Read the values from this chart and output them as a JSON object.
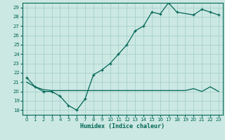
{
  "background_color": "#cce8e3",
  "grid_color": "#aad4ce",
  "line_color": "#006655",
  "xlabel": "Humidex (Indice chaleur)",
  "xlim": [
    -0.5,
    23.5
  ],
  "ylim": [
    17.5,
    29.5
  ],
  "xticks": [
    0,
    1,
    2,
    3,
    4,
    5,
    6,
    7,
    8,
    9,
    10,
    11,
    12,
    13,
    14,
    15,
    16,
    17,
    18,
    19,
    20,
    21,
    22,
    23
  ],
  "yticks": [
    18,
    19,
    20,
    21,
    22,
    23,
    24,
    25,
    26,
    27,
    28,
    29
  ],
  "curve_x": [
    0,
    1,
    2,
    3,
    4,
    5,
    6,
    7,
    8,
    9,
    10,
    11,
    12,
    13,
    14,
    15,
    16,
    17,
    18,
    20,
    21,
    22,
    23
  ],
  "curve_y": [
    21.5,
    20.5,
    20.0,
    20.0,
    19.5,
    18.5,
    18.0,
    19.2,
    21.8,
    22.3,
    23.0,
    24.0,
    25.0,
    26.5,
    27.0,
    28.5,
    28.3,
    29.5,
    28.5,
    28.2,
    28.8,
    28.5,
    28.2
  ],
  "line_x": [
    0,
    1,
    2,
    3,
    4,
    5,
    6,
    7,
    8,
    9,
    10,
    11,
    12,
    13,
    14,
    15,
    16,
    17,
    18,
    19,
    20,
    21,
    22,
    23
  ],
  "line_y": [
    21.0,
    20.5,
    20.2,
    20.1,
    20.1,
    20.1,
    20.1,
    20.1,
    20.1,
    20.1,
    20.1,
    20.1,
    20.1,
    20.1,
    20.1,
    20.1,
    20.1,
    20.1,
    20.1,
    20.1,
    20.3,
    20.0,
    20.5,
    20.0
  ]
}
